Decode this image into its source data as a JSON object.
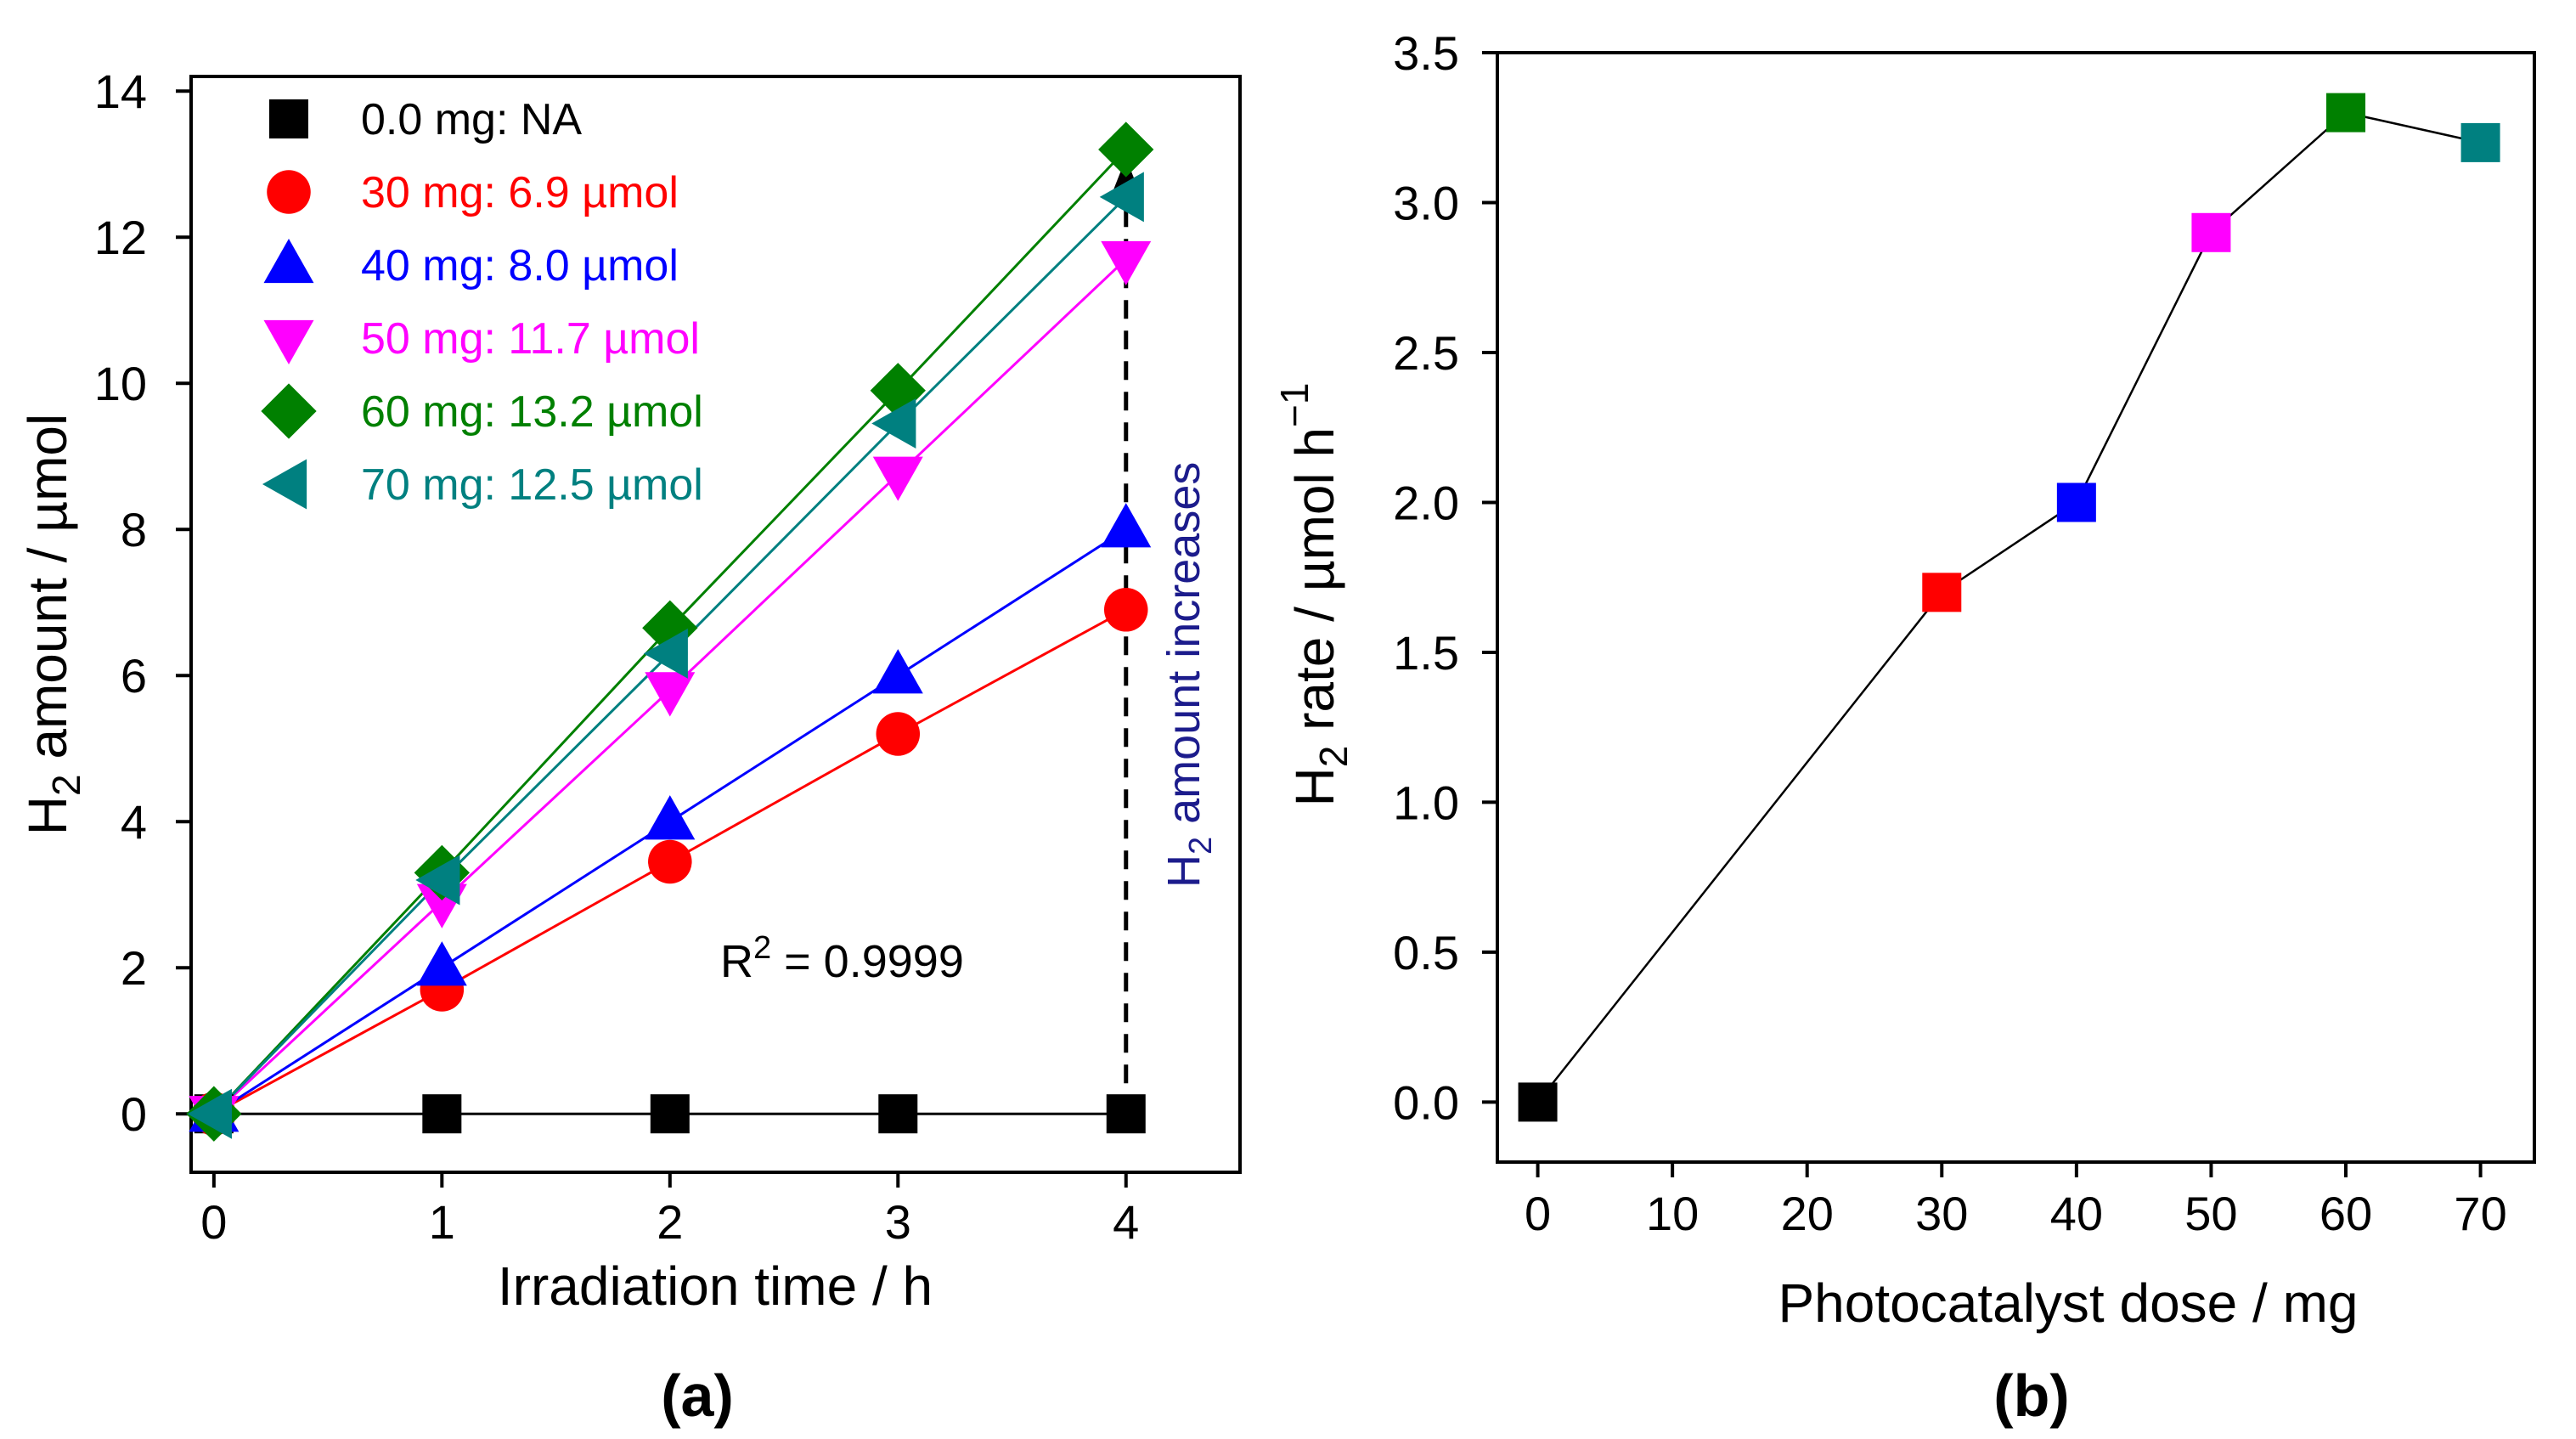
{
  "chart_data": [
    {
      "panel_label": "(a)",
      "type": "line",
      "xlabel": "Irradiation time / h",
      "ylabel_main": "H",
      "ylabel_sub": "2",
      "ylabel_rest": " amount / µmol",
      "xlim": [
        -0.1,
        4.5
      ],
      "ylim": [
        -0.8,
        14.2
      ],
      "xticks": [
        "0",
        "1",
        "2",
        "3",
        "4"
      ],
      "yticks": [
        "0",
        "2",
        "4",
        "6",
        "8",
        "10",
        "12",
        "14"
      ],
      "x": [
        0,
        1,
        2,
        3,
        4
      ],
      "series": [
        {
          "name": "0.0 mg: NA",
          "color": "#000000",
          "marker": "square",
          "values": [
            0,
            0,
            0,
            0,
            0
          ]
        },
        {
          "name": "30 mg: 6.9 µmol",
          "color": "#ff0000",
          "marker": "circle",
          "values": [
            0,
            1.7,
            3.45,
            5.2,
            6.9
          ]
        },
        {
          "name": "40 mg: 8.0 µmol",
          "color": "#0000ff",
          "marker": "triangle-up",
          "values": [
            0,
            2.0,
            4.0,
            6.0,
            8.0
          ]
        },
        {
          "name": "50 mg: 11.7 µmol",
          "color": "#ff00ff",
          "marker": "triangle-down",
          "values": [
            0,
            2.9,
            5.8,
            8.75,
            11.7
          ]
        },
        {
          "name": "60 mg: 13.2 µmol",
          "color": "#008000",
          "marker": "diamond",
          "values": [
            0,
            3.3,
            6.65,
            9.9,
            13.2
          ]
        },
        {
          "name": "70 mg: 12.5 µmol",
          "color": "#008080",
          "marker": "triangle-left",
          "values": [
            0,
            3.2,
            6.3,
            9.45,
            12.55
          ]
        }
      ],
      "annotation": {
        "main": "R",
        "sup": "2",
        "rest": " = 0.9999"
      },
      "arrow_label": {
        "main": "H",
        "sub": "2",
        "rest": " amount increases",
        "color": "#1c1c8c"
      },
      "legend_position": "top-left",
      "grid": false
    },
    {
      "panel_label": "(b)",
      "type": "line",
      "xlabel": "Photocatalyst dose / mg",
      "ylabel_main": "H",
      "ylabel_sub": "2",
      "ylabel_rest": " rate / µmol h",
      "ylabel_sup": "−1",
      "xlim": [
        -3,
        74
      ],
      "ylim": [
        -0.2,
        3.5
      ],
      "xticks": [
        "0",
        "10",
        "20",
        "30",
        "40",
        "50",
        "60",
        "70"
      ],
      "yticks": [
        "0.0",
        "0.5",
        "1.0",
        "1.5",
        "2.0",
        "2.5",
        "3.0",
        "3.5"
      ],
      "x": [
        0,
        30,
        40,
        50,
        60,
        70
      ],
      "values": [
        0.0,
        1.7,
        2.0,
        2.9,
        3.3,
        3.2
      ],
      "colors": [
        "#000000",
        "#ff0000",
        "#0000ff",
        "#ff00ff",
        "#008000",
        "#008080"
      ],
      "grid": false
    }
  ]
}
